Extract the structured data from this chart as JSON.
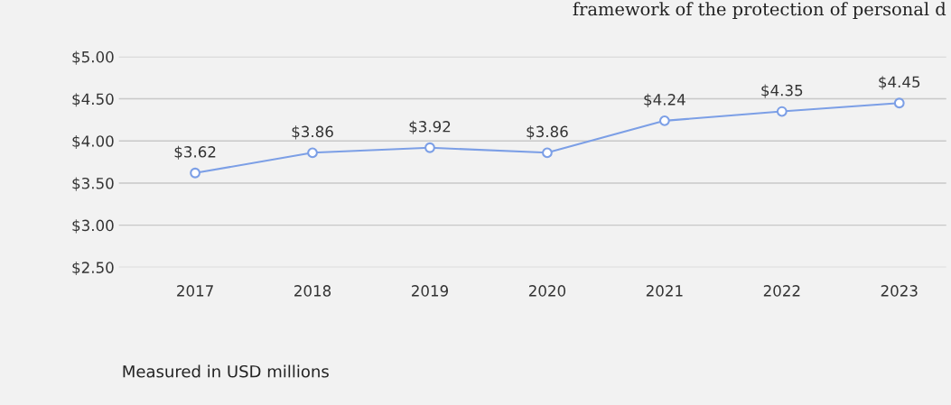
{
  "chart_data": {
    "type": "line",
    "categories": [
      "2017",
      "2018",
      "2019",
      "2020",
      "2021",
      "2022",
      "2023"
    ],
    "series": [
      {
        "color": "#7c9fe6",
        "values": [
          3.62,
          3.86,
          3.92,
          3.86,
          4.24,
          4.35,
          4.45
        ]
      }
    ],
    "value_labels": [
      "$3.62",
      "$3.86",
      "$3.92",
      "$3.86",
      "$4.24",
      "$4.35",
      "$4.45"
    ],
    "ylim": [
      2.5,
      5.0
    ],
    "yticks": [
      {
        "value": 2.5,
        "label": "$2.50"
      },
      {
        "value": 3.0,
        "label": "$3.00"
      },
      {
        "value": 3.5,
        "label": "$3.50"
      },
      {
        "value": 4.0,
        "label": "$4.00"
      },
      {
        "value": 4.5,
        "label": "$4.50"
      },
      {
        "value": 5.0,
        "label": "$5.00"
      }
    ],
    "grid": "y",
    "marker": "circle",
    "line_style": "solid",
    "annotations": [
      "framework of the protection of personal d",
      "Measured in USD millions"
    ]
  }
}
